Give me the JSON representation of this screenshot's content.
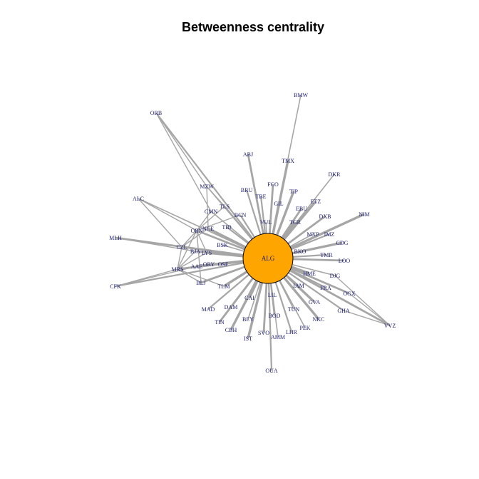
{
  "title": "Betweenness centrality",
  "colors": {
    "edge": "#a6a6a6",
    "hub_fill": "#ffa500",
    "hub_stroke": "#000000",
    "label": "#1a1a6e"
  },
  "hub": "ALG",
  "nodes": [
    "BMW",
    "ORB",
    "ABJ",
    "TMX",
    "DKR",
    "BRU",
    "FCO",
    "TIP",
    "MZW",
    "TBE",
    "GIL",
    "ETZ",
    "ALC",
    "TLS",
    "EBU",
    "NIM",
    "CMN",
    "BCN",
    "DXB",
    "TGR",
    "VUL",
    "TID",
    "ORN",
    "NCE",
    "MXP",
    "IMZ",
    "MLH",
    "CDG",
    "BSK",
    "CZL",
    "BJA",
    "LYS",
    "BKO",
    "TMR",
    "LOO",
    "AAE",
    "ORY",
    "OSF",
    "MRS",
    "HME",
    "DJG",
    "CFK",
    "BLJ",
    "TLM",
    "IAM",
    "FRA",
    "OGX",
    "CAI",
    "LIL",
    "MAD",
    "DAM",
    "GVA",
    "TUN",
    "GHA",
    "VVZ",
    "NKC",
    "BEY",
    "BOD",
    "TIN",
    "CBH",
    "PEK",
    "LHR",
    "SVO",
    "IST",
    "AMM",
    "OUA"
  ]
}
